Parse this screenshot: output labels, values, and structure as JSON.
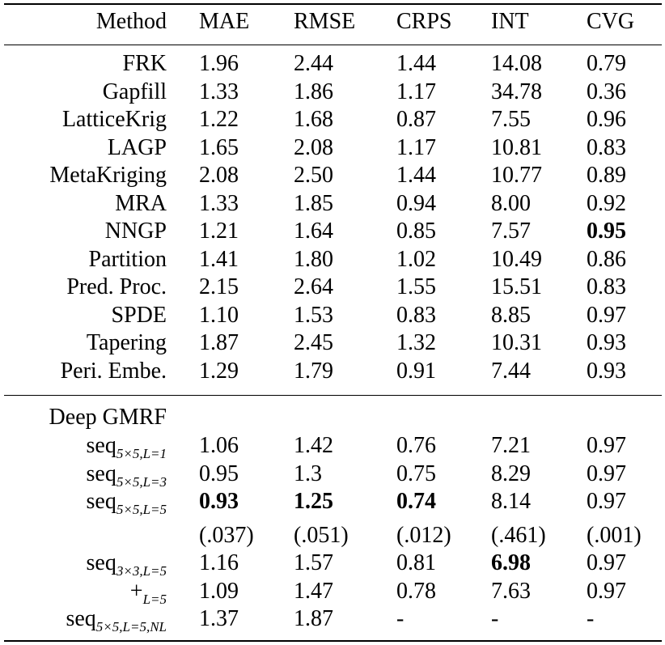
{
  "header": [
    "Method",
    "MAE",
    "RMSE",
    "CRPS",
    "INT",
    "CVG"
  ],
  "baselines": [
    {
      "method": "FRK",
      "mae": "1.96",
      "rmse": "2.44",
      "crps": "1.44",
      "int": "14.08",
      "cvg": "0.79"
    },
    {
      "method": "Gapfill",
      "mae": "1.33",
      "rmse": "1.86",
      "crps": "1.17",
      "int": "34.78",
      "cvg": "0.36"
    },
    {
      "method": "LatticeKrig",
      "mae": "1.22",
      "rmse": "1.68",
      "crps": "0.87",
      "int": "7.55",
      "cvg": "0.96"
    },
    {
      "method": "LAGP",
      "mae": "1.65",
      "rmse": "2.08",
      "crps": "1.17",
      "int": "10.81",
      "cvg": "0.83"
    },
    {
      "method": "MetaKriging",
      "mae": "2.08",
      "rmse": "2.50",
      "crps": "1.44",
      "int": "10.77",
      "cvg": "0.89"
    },
    {
      "method": "MRA",
      "mae": "1.33",
      "rmse": "1.85",
      "crps": "0.94",
      "int": "8.00",
      "cvg": "0.92"
    },
    {
      "method": "NNGP",
      "mae": "1.21",
      "rmse": "1.64",
      "crps": "0.85",
      "int": "7.57",
      "cvg": "0.95"
    },
    {
      "method": "Partition",
      "mae": "1.41",
      "rmse": "1.80",
      "crps": "1.02",
      "int": "10.49",
      "cvg": "0.86"
    },
    {
      "method": "Pred. Proc.",
      "mae": "2.15",
      "rmse": "2.64",
      "crps": "1.55",
      "int": "15.51",
      "cvg": "0.83"
    },
    {
      "method": "SPDE",
      "mae": "1.10",
      "rmse": "1.53",
      "crps": "0.83",
      "int": "8.85",
      "cvg": "0.97"
    },
    {
      "method": "Tapering",
      "mae": "1.87",
      "rmse": "2.45",
      "crps": "1.32",
      "int": "10.31",
      "cvg": "0.93"
    },
    {
      "method": "Peri. Embe.",
      "mae": "1.29",
      "rmse": "1.79",
      "crps": "0.91",
      "int": "7.44",
      "cvg": "0.93"
    }
  ],
  "deep_gmrf": {
    "group_label": "Deep GMRF",
    "rows": [
      {
        "method_base": "seq",
        "method_sub": "5×5,L=1",
        "mae": "1.06",
        "rmse": "1.42",
        "crps": "0.76",
        "int": "7.21",
        "cvg": "0.97"
      },
      {
        "method_base": "seq",
        "method_sub": "5×5,L=3",
        "mae": "0.95",
        "rmse": "1.3",
        "crps": "0.75",
        "int": "8.29",
        "cvg": "0.97"
      },
      {
        "method_base": "seq",
        "method_sub": "5×5,L=5",
        "mae": "0.93",
        "rmse": "1.25",
        "crps": "0.74",
        "int": "8.14",
        "cvg": "0.97"
      },
      {
        "method_base": "",
        "method_sub": "",
        "mae": "(.037)",
        "rmse": "(.051)",
        "crps": "(.012)",
        "int": "(.461)",
        "cvg": "(.001)"
      },
      {
        "method_base": "seq",
        "method_sub": "3×3,L=5",
        "mae": "1.16",
        "rmse": "1.57",
        "crps": "0.81",
        "int": "6.98",
        "cvg": "0.97"
      },
      {
        "method_base": "+",
        "method_sub": "L=5",
        "mae": "1.09",
        "rmse": "1.47",
        "crps": "0.78",
        "int": "7.63",
        "cvg": "0.97"
      },
      {
        "method_base": "seq",
        "method_sub": "5×5,L=5,NL",
        "mae": "1.37",
        "rmse": "1.87",
        "crps": "-",
        "int": "-",
        "cvg": "-"
      }
    ]
  }
}
